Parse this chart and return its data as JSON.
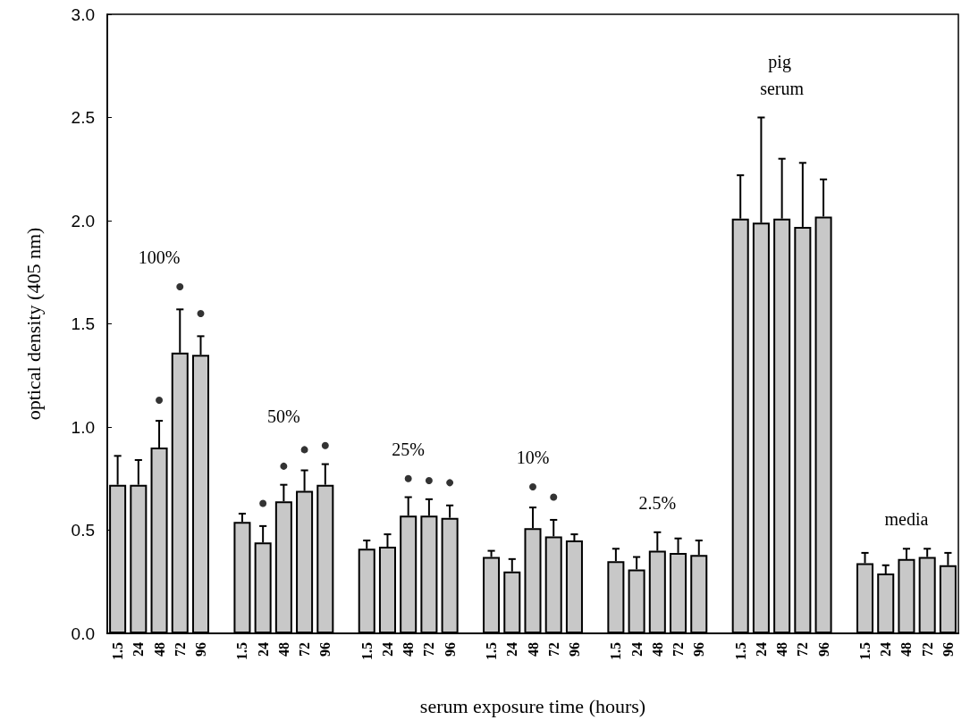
{
  "chart_data": {
    "type": "bar",
    "xlabel": "serum exposure time (hours)",
    "ylabel": "optical density (405 nm)",
    "categories": [
      "1.5",
      "24",
      "48",
      "72",
      "96",
      null,
      "1.5",
      "24",
      "48",
      "72",
      "96",
      null,
      "1.5",
      "24",
      "48",
      "72",
      "96",
      null,
      "1.5",
      "24",
      "48",
      "72",
      "96",
      null,
      "1.5",
      "24",
      "48",
      "72",
      "96",
      null,
      "1.5",
      "24",
      "48",
      "72",
      "96",
      null,
      "1.5",
      "24",
      "48",
      "72",
      "96"
    ],
    "series": [
      {
        "color": "#c8c8c8",
        "values": [
          0.72,
          0.72,
          0.9,
          1.36,
          1.35,
          null,
          0.54,
          0.44,
          0.64,
          0.69,
          0.72,
          null,
          0.41,
          0.42,
          0.57,
          0.57,
          0.56,
          null,
          0.37,
          0.3,
          0.51,
          0.47,
          0.45,
          null,
          0.35,
          0.31,
          0.4,
          0.39,
          0.38,
          null,
          2.01,
          1.99,
          2.01,
          1.97,
          2.02,
          null,
          0.34,
          0.29,
          0.36,
          0.37,
          0.33
        ],
        "errors": [
          [
            0.72,
            0.86
          ],
          [
            0.72,
            0.84
          ],
          [
            0.9,
            1.03
          ],
          [
            1.36,
            1.57
          ],
          [
            1.35,
            1.44
          ],
          null,
          [
            0.54,
            0.58
          ],
          [
            0.44,
            0.52
          ],
          [
            0.64,
            0.72
          ],
          [
            0.69,
            0.79
          ],
          [
            0.72,
            0.82
          ],
          null,
          [
            0.41,
            0.45
          ],
          [
            0.42,
            0.48
          ],
          [
            0.57,
            0.66
          ],
          [
            0.57,
            0.65
          ],
          [
            0.56,
            0.62
          ],
          null,
          [
            0.37,
            0.4
          ],
          [
            0.3,
            0.36
          ],
          [
            0.51,
            0.61
          ],
          [
            0.47,
            0.55
          ],
          [
            0.45,
            0.48
          ],
          null,
          [
            0.35,
            0.41
          ],
          [
            0.31,
            0.37
          ],
          [
            0.4,
            0.49
          ],
          [
            0.39,
            0.46
          ],
          [
            0.38,
            0.45
          ],
          null,
          [
            2.01,
            2.22
          ],
          [
            1.99,
            2.5
          ],
          [
            2.01,
            2.3
          ],
          [
            1.97,
            2.28
          ],
          [
            2.02,
            2.2
          ],
          null,
          [
            0.34,
            0.39
          ],
          [
            0.29,
            0.33
          ],
          [
            0.36,
            0.41
          ],
          [
            0.37,
            0.41
          ],
          [
            0.33,
            0.39
          ]
        ]
      },
      {
        "type": "scatter",
        "color": "#000000",
        "marker": "circle",
        "values": [
          null,
          null,
          1.13,
          1.68,
          1.55,
          null,
          null,
          0.63,
          0.81,
          0.89,
          0.91,
          null,
          null,
          null,
          0.75,
          0.74,
          0.73,
          null,
          null,
          null,
          0.71,
          0.66,
          null,
          null,
          null,
          null,
          null,
          null,
          null,
          null,
          null,
          null,
          null,
          null,
          null,
          null,
          null,
          null,
          null,
          null,
          null
        ]
      }
    ],
    "annotations": [
      "100%",
      "50%",
      "25%",
      "10%",
      "2.5%",
      "pig serum",
      "media"
    ],
    "ylim": [
      0,
      3
    ],
    "yticks": [
      {
        "value": 0,
        "label": "0.0"
      },
      {
        "value": 0.5,
        "label": "0.5"
      },
      {
        "value": 1,
        "label": "1.0"
      },
      {
        "value": 1.5,
        "label": "1.5"
      },
      {
        "value": 2,
        "label": "2.0"
      },
      {
        "value": 2.5,
        "label": "2.5"
      },
      {
        "value": 3,
        "label": "3.0"
      }
    ],
    "grid": false
  }
}
